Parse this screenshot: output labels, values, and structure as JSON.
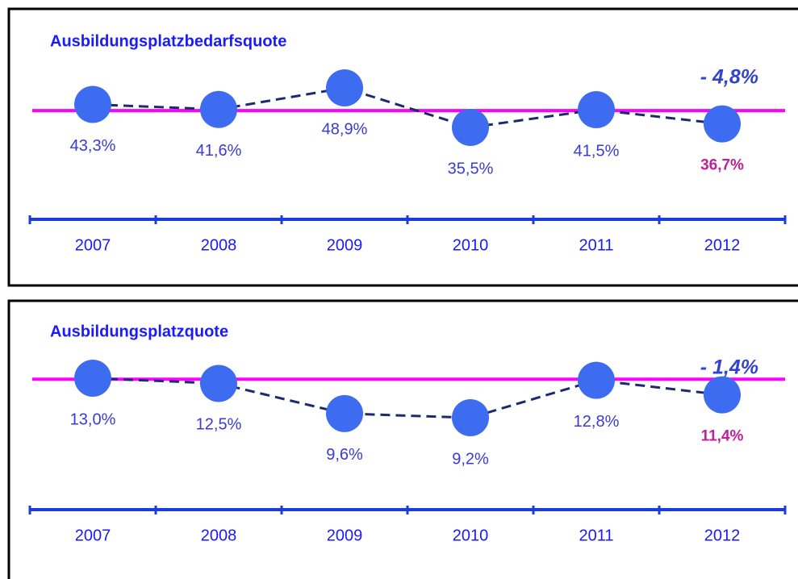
{
  "chart_data": [
    {
      "type": "line",
      "title": "Ausbildungsplatzbedarfsquote",
      "annotation": "- 4,8%",
      "categories": [
        "2007",
        "2008",
        "2009",
        "2010",
        "2011",
        "2012"
      ],
      "values": [
        43.3,
        41.6,
        48.9,
        35.5,
        41.5,
        36.7
      ],
      "value_labels": [
        "43,3%",
        "41,6%",
        "48,9%",
        "35,5%",
        "41,5%",
        "36,7%"
      ],
      "label_colors": [
        "#3a3ad8",
        "#3a3ad8",
        "#3a3ad8",
        "#3a3ad8",
        "#3a3ad8",
        "#c0209a"
      ],
      "color": "#3d6cf0",
      "line_color": "#1c2a6e",
      "reference_value": 41.2,
      "reference_color": "#ff00ff"
    },
    {
      "type": "line",
      "title": "Ausbildungsplatzquote",
      "annotation": "- 1,4%",
      "categories": [
        "2007",
        "2008",
        "2009",
        "2010",
        "2011",
        "2012"
      ],
      "values": [
        13.0,
        12.5,
        9.6,
        9.2,
        12.8,
        11.4
      ],
      "value_labels": [
        "13,0%",
        "12,5%",
        "9,6%",
        "9,2%",
        "12,8%",
        "11,4%"
      ],
      "label_colors": [
        "#3a3ad8",
        "#3a3ad8",
        "#3a3ad8",
        "#3a3ad8",
        "#3a3ad8",
        "#c0209a"
      ],
      "color": "#3d6cf0",
      "line_color": "#1c2a6e",
      "reference_value": 12.9,
      "reference_color": "#ff00ff"
    }
  ]
}
